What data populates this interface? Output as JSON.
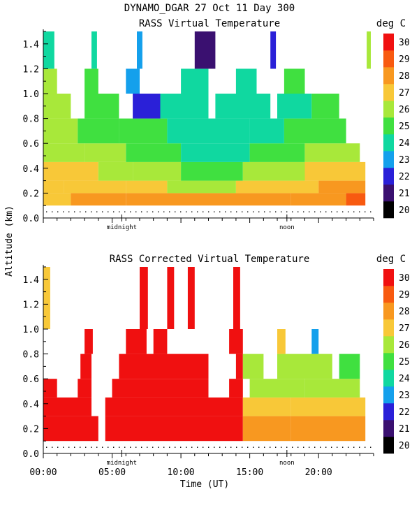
{
  "header": {
    "title": "DYNAMO_DGAR  27 Oct 11 Day 300"
  },
  "colorscale": {
    "unit": "deg C",
    "levels": [
      20,
      21,
      22,
      23,
      24,
      25,
      26,
      27,
      28,
      29,
      30
    ],
    "colors": [
      "#000000",
      "#3a1070",
      "#2a20d8",
      "#14a0ec",
      "#10d8a0",
      "#40e040",
      "#a8e83a",
      "#f8c838",
      "#f89820",
      "#f85a10",
      "#f01010"
    ]
  },
  "chart_data": [
    {
      "type": "heatmap",
      "title": "RASS Virtual Temperature",
      "ylabel": "Altitude (km)",
      "xlabel": "",
      "xlim": [
        0,
        24
      ],
      "ylim": [
        0,
        1.5
      ],
      "yticks": [
        0.0,
        0.2,
        0.4,
        0.6,
        0.8,
        1.0,
        1.2,
        1.4
      ],
      "ytick_labels": [
        "0.0",
        "0.2",
        "0.4",
        "0.6",
        "0.8",
        "1.0",
        "1.2",
        "1.4"
      ],
      "local_time_marks": [
        {
          "x": 5.7,
          "label": "midnight"
        },
        {
          "x": 17.7,
          "label": "noon"
        }
      ],
      "colorbar_unit": "deg C",
      "layers": [
        {
          "y": [
            0.1,
            0.2
          ],
          "segments": [
            [
              0.0,
              2.0,
              27.5
            ],
            [
              2.0,
              6.0,
              28.5
            ],
            [
              6.0,
              12.0,
              28.0
            ],
            [
              12.0,
              18.0,
              28.4
            ],
            [
              18.0,
              22.0,
              28.8
            ],
            [
              22.0,
              23.4,
              29.3
            ]
          ]
        },
        {
          "y": [
            0.2,
            0.3
          ],
          "segments": [
            [
              0.0,
              1.5,
              27.0
            ],
            [
              1.5,
              6.0,
              27.8
            ],
            [
              6.0,
              9.0,
              27.1
            ],
            [
              9.0,
              14.0,
              26.9
            ],
            [
              14.0,
              20.0,
              27.3
            ],
            [
              20.0,
              23.4,
              28.2
            ]
          ]
        },
        {
          "y": [
            0.3,
            0.45
          ],
          "segments": [
            [
              0.0,
              4.0,
              27.0
            ],
            [
              4.0,
              6.5,
              26.5
            ],
            [
              6.5,
              10.0,
              26.0
            ],
            [
              10.0,
              14.5,
              25.2
            ],
            [
              14.5,
              19.0,
              26.2
            ],
            [
              19.0,
              23.4,
              27.2
            ]
          ]
        },
        {
          "y": [
            0.45,
            0.6
          ],
          "segments": [
            [
              0.0,
              3.0,
              26.5
            ],
            [
              3.0,
              6.0,
              26.0
            ],
            [
              6.0,
              10.0,
              25.5
            ],
            [
              10.0,
              15.0,
              24.6
            ],
            [
              15.0,
              19.0,
              25.0
            ],
            [
              19.0,
              23.0,
              26.0
            ]
          ]
        },
        {
          "y": [
            0.6,
            0.8
          ],
          "segments": [
            [
              0.0,
              2.5,
              26.5
            ],
            [
              2.5,
              5.5,
              25.6
            ],
            [
              5.5,
              9.0,
              25.0
            ],
            [
              9.0,
              15.0,
              24.5
            ],
            [
              15.0,
              17.5,
              24.3
            ],
            [
              17.5,
              22.0,
              25.2
            ]
          ]
        },
        {
          "y": [
            0.8,
            1.0
          ],
          "segments": [
            [
              0.0,
              2.0,
              26.8
            ],
            [
              3.0,
              5.5,
              25.5
            ],
            [
              6.5,
              8.5,
              22.5
            ],
            [
              8.5,
              12.0,
              24.8
            ],
            [
              12.5,
              16.5,
              24.4
            ],
            [
              17.0,
              19.5,
              24.8
            ],
            [
              19.5,
              21.5,
              25.3
            ]
          ]
        },
        {
          "y": [
            1.0,
            1.2
          ],
          "segments": [
            [
              0.0,
              1.0,
              26.5
            ],
            [
              3.0,
              4.0,
              25.2
            ],
            [
              6.0,
              7.0,
              23.5
            ],
            [
              10.0,
              12.0,
              24.5
            ],
            [
              14.0,
              15.5,
              24.0
            ],
            [
              17.5,
              19.0,
              25.0
            ]
          ]
        },
        {
          "y": [
            1.2,
            1.5
          ],
          "segments": [
            [
              0.0,
              0.8,
              24.5
            ],
            [
              3.5,
              3.9,
              24.0
            ],
            [
              6.8,
              7.2,
              23.5
            ],
            [
              11.0,
              12.5,
              21.0
            ],
            [
              16.5,
              16.9,
              22.5
            ],
            [
              23.5,
              23.8,
              26.0
            ]
          ]
        }
      ]
    },
    {
      "type": "heatmap",
      "title": "RASS Corrected Virtual Temperature",
      "ylabel": "",
      "xlabel": "Time (UT)",
      "xlim": [
        0,
        24
      ],
      "ylim": [
        0,
        1.5
      ],
      "xticks": [
        0,
        5,
        10,
        15,
        20
      ],
      "xtick_labels": [
        "00:00",
        "05:00",
        "10:00",
        "15:00",
        "20:00"
      ],
      "yticks": [
        0.0,
        0.2,
        0.4,
        0.6,
        0.8,
        1.0,
        1.2,
        1.4
      ],
      "ytick_labels": [
        "0.0",
        "0.2",
        "0.4",
        "0.6",
        "0.8",
        "1.0",
        "1.2",
        "1.4"
      ],
      "local_time_marks": [
        {
          "x": 5.7,
          "label": "midnight"
        },
        {
          "x": 17.7,
          "label": "noon"
        }
      ],
      "colorbar_unit": "deg C",
      "layers": [
        {
          "y": [
            0.1,
            0.3
          ],
          "segments": [
            [
              0.0,
              4.0,
              30.5
            ],
            [
              4.5,
              14.5,
              30.5
            ],
            [
              14.5,
              18.0,
              28.6
            ],
            [
              18.0,
              23.4,
              28.8
            ]
          ]
        },
        {
          "y": [
            0.3,
            0.45
          ],
          "segments": [
            [
              0.0,
              3.5,
              30.3
            ],
            [
              4.5,
              14.5,
              30.3
            ],
            [
              14.5,
              18.0,
              27.3
            ],
            [
              18.0,
              23.4,
              27.6
            ]
          ]
        },
        {
          "y": [
            0.45,
            0.6
          ],
          "segments": [
            [
              0.0,
              1.0,
              30.0
            ],
            [
              2.5,
              3.5,
              30.0
            ],
            [
              5.0,
              12.0,
              30.2
            ],
            [
              13.5,
              14.5,
              30.0
            ],
            [
              15.0,
              19.0,
              26.5
            ],
            [
              19.0,
              23.0,
              26.8
            ]
          ]
        },
        {
          "y": [
            0.6,
            0.8
          ],
          "segments": [
            [
              2.7,
              3.5,
              30.0
            ],
            [
              5.5,
              12.0,
              30.1
            ],
            [
              14.0,
              14.5,
              30.0
            ],
            [
              14.5,
              16.0,
              26.5
            ],
            [
              17.0,
              21.0,
              26.2
            ],
            [
              21.5,
              23.0,
              25.5
            ]
          ]
        },
        {
          "y": [
            0.8,
            1.0
          ],
          "segments": [
            [
              3.0,
              3.6,
              30.0
            ],
            [
              6.0,
              7.5,
              30.0
            ],
            [
              8.0,
              9.0,
              30.0
            ],
            [
              13.5,
              14.5,
              30.0
            ],
            [
              17.0,
              17.6,
              27.5
            ],
            [
              19.5,
              20.0,
              23.0
            ]
          ]
        },
        {
          "y": [
            1.0,
            1.5
          ],
          "segments": [
            [
              0.0,
              0.5,
              27.5
            ],
            [
              7.0,
              7.6,
              30.0
            ],
            [
              9.0,
              9.5,
              30.5
            ],
            [
              10.5,
              11.0,
              30.5
            ],
            [
              13.8,
              14.3,
              30.2
            ]
          ]
        }
      ]
    }
  ]
}
